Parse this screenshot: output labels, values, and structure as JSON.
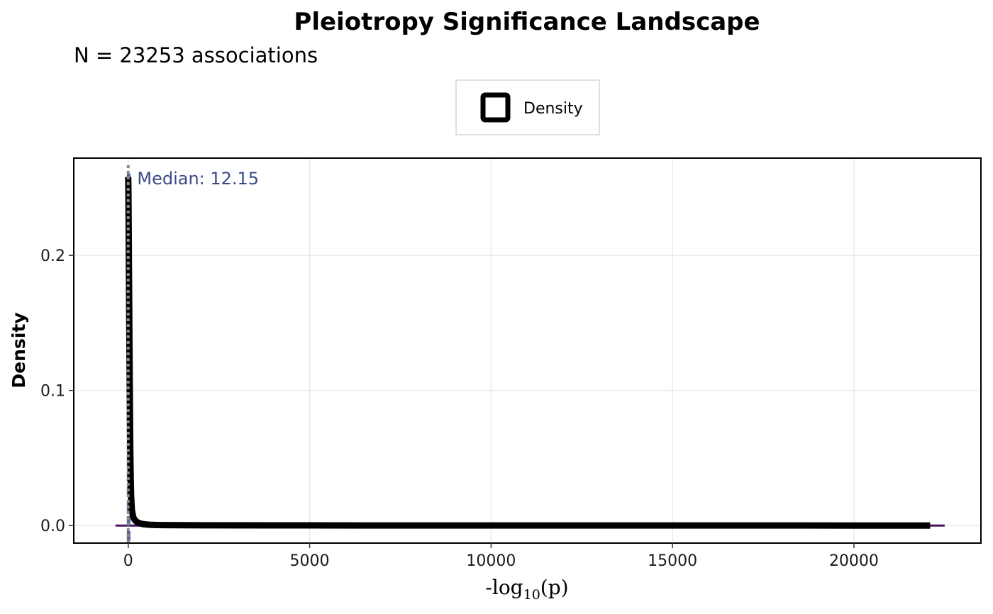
{
  "chart_data": {
    "type": "area",
    "title": "Pleiotropy Significance Landscape",
    "subtitle": "N = 23253 associations",
    "xlabel_prefix": "-log",
    "xlabel_sub": "10",
    "xlabel_suffix": "(p)",
    "ylabel": "Density",
    "xlim": [
      -1500,
      23500
    ],
    "ylim": [
      -0.013,
      0.272
    ],
    "x_ticks": [
      0,
      5000,
      10000,
      15000,
      20000
    ],
    "x_tick_labels": [
      "0",
      "5000",
      "10000",
      "15000",
      "20000"
    ],
    "y_ticks": [
      0.0,
      0.1,
      0.2
    ],
    "y_tick_labels": [
      "0.0",
      "0.1",
      "0.2"
    ],
    "grid": true,
    "legend": {
      "position": "top",
      "entries": [
        "Density"
      ]
    },
    "series": [
      {
        "name": "Density",
        "color": "#000000",
        "x": [
          0,
          5,
          12,
          20,
          30,
          40,
          50,
          60,
          70,
          80,
          100,
          130,
          160,
          200,
          250,
          300,
          400,
          500,
          600,
          800,
          1000,
          2000,
          5000,
          10000,
          15000,
          20000,
          22100
        ],
        "y": [
          0.258,
          0.25,
          0.225,
          0.19,
          0.15,
          0.11,
          0.075,
          0.05,
          0.033,
          0.022,
          0.012,
          0.007,
          0.005,
          0.0035,
          0.0025,
          0.0018,
          0.0011,
          0.0008,
          0.0006,
          0.0004,
          0.0003,
          0.0002,
          0.0001,
          5e-05,
          3e-05,
          2e-05,
          1e-05
        ]
      }
    ],
    "rug": {
      "color": "#4a1461",
      "x_range": [
        -350,
        22500
      ]
    },
    "median": {
      "value": 12.15,
      "label": "Median: 12.15",
      "color": "#3b4a87",
      "ref_line_color": "#8a8a8a"
    }
  }
}
